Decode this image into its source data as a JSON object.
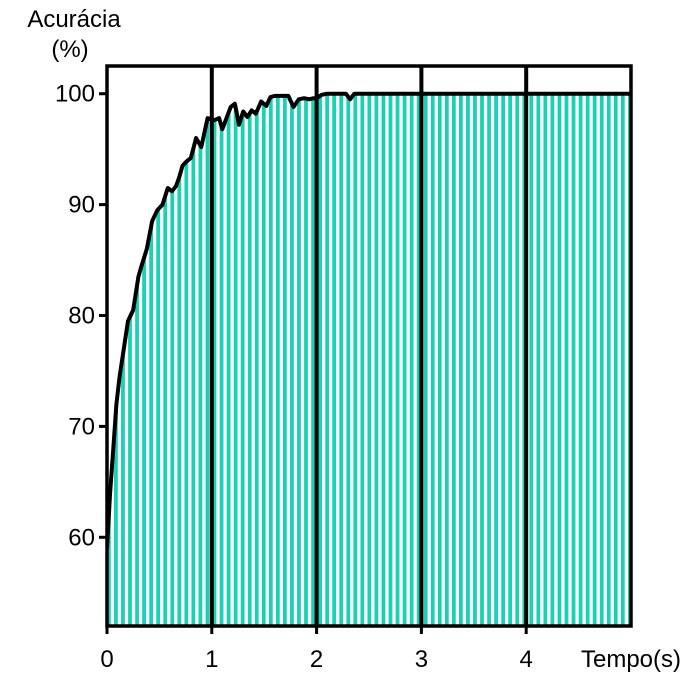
{
  "chart_data": {
    "type": "area",
    "title": "",
    "ylabel_line1": "Acurácia",
    "ylabel_line2": "(%)",
    "xlabel": "Tempo(s)",
    "xlim": [
      0,
      5
    ],
    "ylim": [
      52,
      102.5
    ],
    "xticks": [
      "0",
      "1",
      "2",
      "3",
      "4"
    ],
    "xtick_values": [
      0,
      1,
      2,
      3,
      4
    ],
    "yticks": [
      "60",
      "70",
      "80",
      "90",
      "100"
    ],
    "ytick_values": [
      60,
      70,
      80,
      90,
      100
    ],
    "grid": "vertical",
    "colors": {
      "fill": "#1ad1b4",
      "stripe": "#ffffff",
      "line": "#000000",
      "frame": "#000000"
    },
    "series": [
      {
        "x": [
          0,
          0.03,
          0.06,
          0.09,
          0.12,
          0.16,
          0.2,
          0.25,
          0.3,
          0.33,
          0.38,
          0.43,
          0.48,
          0.53,
          0.58,
          0.62,
          0.66,
          0.69,
          0.72,
          0.76,
          0.8,
          0.85,
          0.9,
          0.96,
          1.02,
          1.07,
          1.1,
          1.14,
          1.18,
          1.22,
          1.26,
          1.3,
          1.34,
          1.38,
          1.42,
          1.47,
          1.52,
          1.56,
          1.6,
          1.64,
          1.68,
          1.73,
          1.78,
          1.83,
          1.88,
          1.93,
          1.97,
          2.0,
          2.05,
          2.1,
          2.2,
          2.28,
          2.32,
          2.36,
          2.42,
          2.5,
          2.6,
          2.7,
          2.75,
          2.8,
          2.9,
          3.0,
          3.1,
          3.2,
          3.26,
          3.32,
          3.38,
          3.45,
          3.6,
          3.8,
          4.0,
          4.5,
          5.0
        ],
        "y": [
          59,
          64,
          68,
          72,
          74.5,
          77,
          79.5,
          80.5,
          83.5,
          84.5,
          86,
          88.5,
          89.5,
          90,
          91.5,
          91.2,
          91.7,
          92.5,
          93.5,
          93.9,
          94.2,
          96,
          95.2,
          97.8,
          97.6,
          97.8,
          96.8,
          97.8,
          98.8,
          99.1,
          97.2,
          98.4,
          97.9,
          98.5,
          98.2,
          99.3,
          98.9,
          99.7,
          99.8,
          99.8,
          99.8,
          99.8,
          98.8,
          99.5,
          99.6,
          99.5,
          99.6,
          99.6,
          99.9,
          100,
          100,
          100,
          99.5,
          100,
          100,
          100,
          100,
          100,
          100,
          100,
          100,
          100,
          100,
          100,
          100,
          100,
          100,
          100,
          100,
          100,
          100,
          100,
          100
        ]
      }
    ]
  }
}
